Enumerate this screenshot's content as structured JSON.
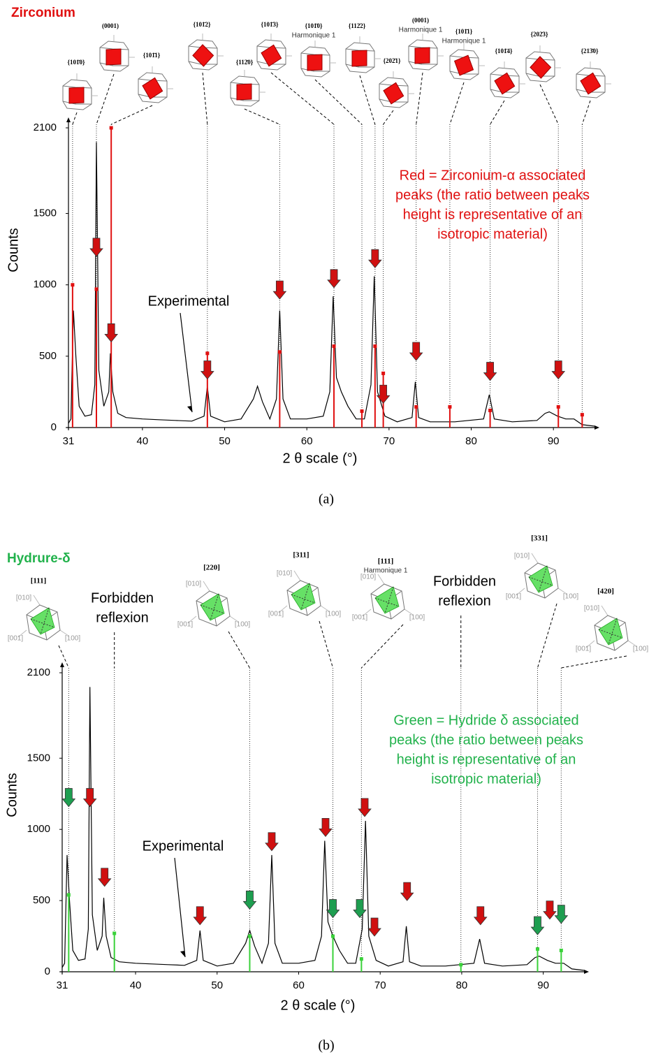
{
  "chart_data": [
    {
      "type": "line",
      "title": "Zirconium",
      "title_color": "#e01010",
      "panel_label": "(a)",
      "x_label": "2 θ scale (°)",
      "y_label": "Counts",
      "xlim": [
        31,
        95
      ],
      "ylim": [
        0,
        2100
      ],
      "xticks": [
        31,
        40,
        50,
        60,
        70,
        80,
        90
      ],
      "yticks": [
        0,
        500,
        1000,
        1500,
        2100
      ],
      "series": [
        {
          "name": "Experimental",
          "color": "#000000",
          "x": [
            31,
            31.3,
            31.6,
            31.9,
            32.3,
            33,
            33.8,
            34.2,
            34.4,
            34.7,
            35.3,
            35.9,
            36.1,
            36.4,
            37,
            38,
            40,
            42,
            44,
            46,
            47.5,
            47.9,
            48.3,
            50,
            52,
            53.5,
            54,
            54.6,
            55.5,
            56.3,
            56.7,
            57.1,
            58,
            60,
            62,
            62.8,
            63.2,
            63.6,
            64.2,
            65,
            66,
            67,
            67.8,
            68.2,
            68.6,
            69.5,
            71,
            72.8,
            73.2,
            73.6,
            75,
            78,
            81.5,
            82.2,
            82.8,
            85,
            88,
            89,
            89.5,
            90.5,
            91.5,
            92.5,
            93.5,
            95
          ],
          "values": [
            30,
            60,
            820,
            500,
            150,
            80,
            90,
            300,
            2000,
            400,
            150,
            250,
            520,
            250,
            100,
            70,
            60,
            55,
            50,
            45,
            80,
            290,
            80,
            40,
            60,
            200,
            290,
            180,
            60,
            200,
            820,
            200,
            60,
            60,
            80,
            250,
            920,
            350,
            250,
            150,
            60,
            60,
            300,
            1060,
            250,
            80,
            40,
            70,
            320,
            70,
            40,
            40,
            60,
            230,
            60,
            40,
            50,
            100,
            110,
            80,
            60,
            60,
            20,
            10
          ]
        }
      ],
      "reference_peaks": {
        "color": "#e01010",
        "x": [
          31.5,
          34.4,
          36.2,
          47.9,
          56.7,
          63.3,
          66.7,
          68.3,
          69.3,
          73.3,
          77.4,
          82.3,
          90.6,
          93.5
        ],
        "values": [
          1000,
          970,
          2100,
          520,
          530,
          570,
          115,
          570,
          380,
          145,
          145,
          120,
          145,
          90
        ]
      },
      "arrow_markers": [
        {
          "color": "#d01010",
          "x": [
            34.4,
            36.2,
            47.9,
            56.7,
            63.3,
            68.3,
            69.3,
            73.3,
            82.3,
            90.6
          ],
          "values": [
            1200,
            600,
            340,
            900,
            980,
            1120,
            170,
            470,
            330,
            340
          ]
        }
      ],
      "note": {
        "color": "#e01010",
        "lines": [
          "Red = Zirconium-α associated",
          "peaks (the ratio between peaks",
          "height is representative of an",
          "isotropic material)"
        ]
      },
      "icons": [
        {
          "label": "{101̄0}"
        },
        {
          "label": "(0001)"
        },
        {
          "label": "{101̄1}"
        },
        {
          "label": "{101̄2}"
        },
        {
          "label": "{112̄0}"
        },
        {
          "label": "{101̄3}"
        },
        {
          "label": "{101̄0}",
          "sublabel": "Harmonique 1"
        },
        {
          "label": "{112̄2}"
        },
        {
          "label": "{202̄1}"
        },
        {
          "label": "(0001)",
          "sublabel": "Harmonique 1"
        },
        {
          "label": "{101̄1}",
          "sublabel": "Harmonique 1"
        },
        {
          "label": "{101̄4}"
        },
        {
          "label": "{202̄3}"
        },
        {
          "label": "{213̄0}"
        }
      ]
    },
    {
      "type": "line",
      "title": "Hydrure-δ",
      "title_color": "#22b24c",
      "panel_label": "(b)",
      "x_label": "2 θ scale (°)",
      "y_label": "Counts",
      "xlim": [
        31,
        95
      ],
      "ylim": [
        0,
        2100
      ],
      "xticks": [
        31,
        40,
        50,
        60,
        70,
        80,
        90
      ],
      "yticks": [
        0,
        500,
        1000,
        1500,
        2100
      ],
      "series": [
        {
          "name": "Experimental",
          "color": "#000000",
          "x": [
            31,
            31.3,
            31.6,
            31.9,
            32.3,
            33,
            33.8,
            34.2,
            34.4,
            34.7,
            35.3,
            35.9,
            36.1,
            36.4,
            37,
            38,
            40,
            42,
            44,
            46,
            47.5,
            47.9,
            48.3,
            50,
            52,
            53.5,
            54,
            54.6,
            55.5,
            56.3,
            56.7,
            57.1,
            58,
            60,
            62,
            62.8,
            63.2,
            63.6,
            64.2,
            65,
            66,
            67,
            67.8,
            68.2,
            68.6,
            69.5,
            71,
            72.8,
            73.2,
            73.6,
            75,
            78,
            81.5,
            82.2,
            82.8,
            85,
            88,
            89,
            89.5,
            90.5,
            91.5,
            92.5,
            93.5,
            95
          ],
          "values": [
            30,
            60,
            820,
            500,
            150,
            80,
            90,
            300,
            2000,
            400,
            150,
            250,
            520,
            250,
            100,
            70,
            60,
            55,
            50,
            45,
            80,
            290,
            80,
            40,
            60,
            200,
            290,
            180,
            60,
            200,
            820,
            200,
            60,
            60,
            80,
            250,
            920,
            350,
            250,
            150,
            60,
            60,
            300,
            1060,
            250,
            80,
            40,
            70,
            320,
            70,
            40,
            40,
            60,
            230,
            60,
            40,
            50,
            100,
            110,
            80,
            60,
            60,
            20,
            10
          ]
        }
      ],
      "reference_peaks": {
        "color": "#3ad13a",
        "x": [
          31.8,
          37.4,
          54.0,
          64.2,
          67.7,
          79.9,
          89.3,
          92.2
        ],
        "values": [
          540,
          270,
          250,
          250,
          90,
          50,
          160,
          150
        ]
      },
      "arrow_markers": [
        {
          "color": "#d01010",
          "x": [
            34.4,
            36.2,
            47.9,
            56.7,
            63.3,
            68.1,
            69.3,
            73.3,
            82.3,
            90.8
          ],
          "values": [
            1160,
            600,
            330,
            850,
            950,
            1090,
            250,
            500,
            330,
            370
          ]
        },
        {
          "color": "#1e9e50",
          "x": [
            31.8,
            54.0,
            64.2,
            67.5,
            89.3,
            92.2
          ],
          "values": [
            1160,
            440,
            380,
            380,
            260,
            340
          ]
        }
      ],
      "note": {
        "color": "#22b24c",
        "lines": [
          "Green = Hydride δ associated",
          "peaks (the ratio between peaks",
          "height is representative of an",
          "isotropic material)"
        ]
      },
      "axis_names": [
        "[010]",
        "[001]",
        "[100]"
      ],
      "icons": [
        {
          "label": "[111]"
        },
        {
          "lines": [
            "Forbidden",
            "reflexion"
          ]
        },
        {
          "label": "[220]"
        },
        {
          "label": "[311]"
        },
        {
          "label": "[111]",
          "sublabel": "Harmonique 1"
        },
        {
          "lines": [
            "Forbidden",
            "reflexion"
          ]
        },
        {
          "label": "[331]"
        },
        {
          "label": "[420]"
        }
      ]
    }
  ]
}
